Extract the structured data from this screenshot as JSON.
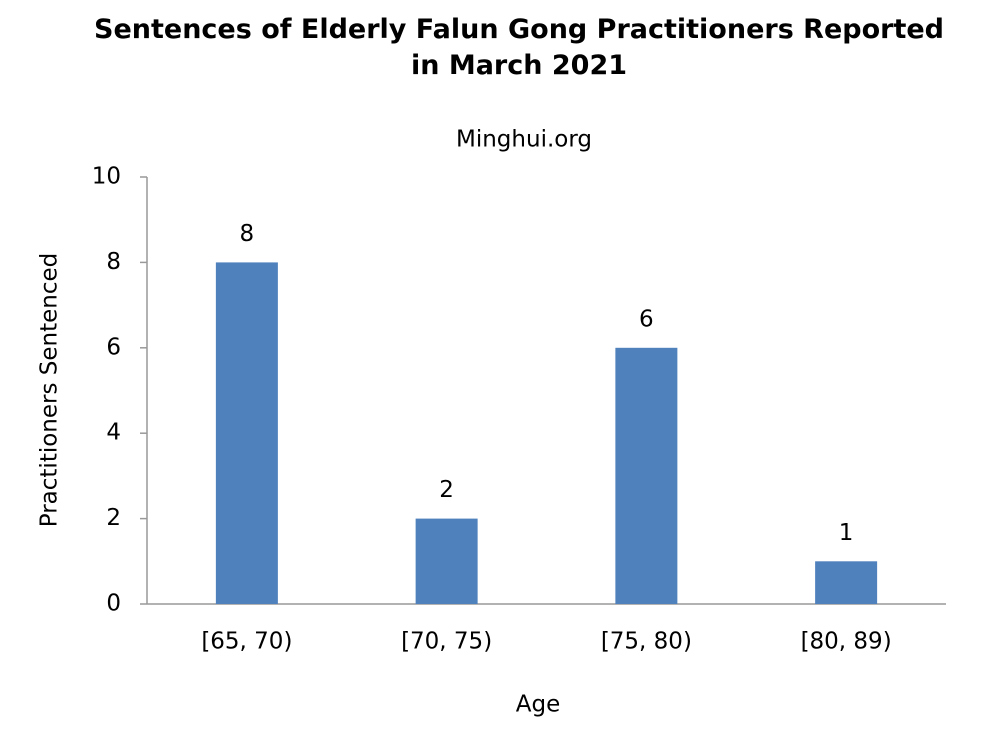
{
  "chart_data": {
    "type": "bar",
    "title": "Sentences of Elderly Falun Gong Practitioners Reported in March 2021",
    "subtitle": "Minghui.org",
    "x_label": "Age",
    "y_label": "Practitioners Sentenced",
    "categories": [
      "[65, 70)",
      "[70, 75)",
      "[75, 80)",
      "[80, 89)"
    ],
    "values": [
      8,
      2,
      6,
      1
    ],
    "color": "#4f81bd",
    "ylim": [
      0,
      10
    ],
    "yticks": [
      0,
      2,
      4,
      6,
      8,
      10
    ],
    "grid": false
  }
}
